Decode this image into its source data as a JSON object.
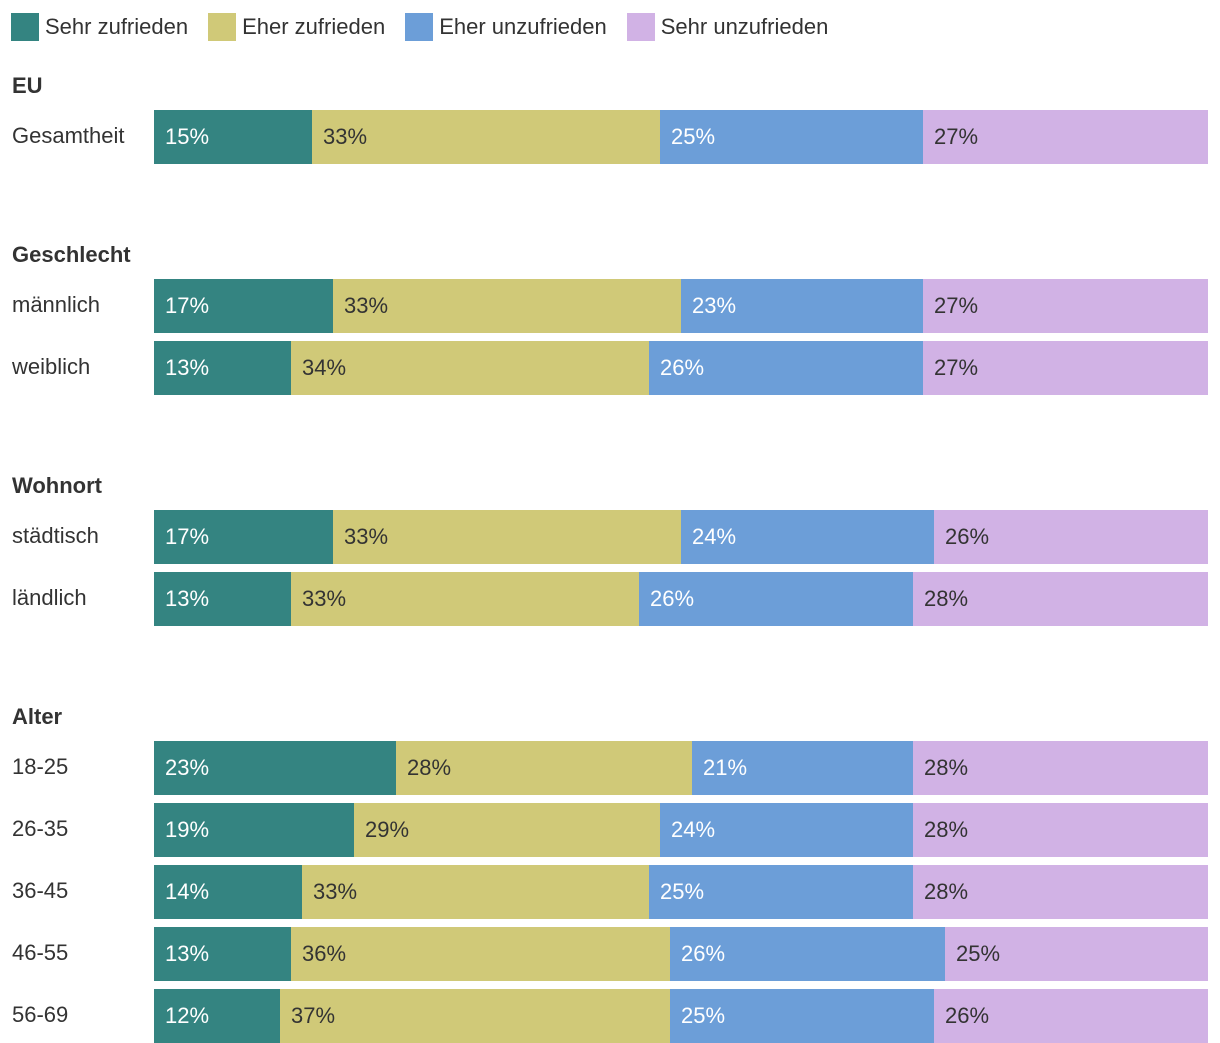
{
  "chart_data": {
    "type": "bar",
    "orientation": "horizontal",
    "stacked": true,
    "normalized_percent": true,
    "title": "",
    "xlabel": "",
    "ylabel": "",
    "legend_position": "top-left",
    "series": [
      {
        "name": "Sehr zufrieden",
        "color": "#348481",
        "label_color": "#ffffff"
      },
      {
        "name": "Eher zufrieden",
        "color": "#d0c978",
        "label_color": "#333333"
      },
      {
        "name": "Eher unzufrieden",
        "color": "#6c9ed8",
        "label_color": "#ffffff"
      },
      {
        "name": "Sehr unzufrieden",
        "color": "#d1b2e5",
        "label_color": "#333333"
      }
    ],
    "groups": [
      {
        "title": "EU",
        "rows": [
          {
            "label": "Gesamtheit",
            "values": [
              15,
              33,
              25,
              27
            ],
            "labels": [
              "15%",
              "33%",
              "25%",
              "27%"
            ]
          }
        ]
      },
      {
        "title": "Geschlecht",
        "rows": [
          {
            "label": "männlich",
            "values": [
              17,
              33,
              23,
              27
            ],
            "labels": [
              "17%",
              "33%",
              "23%",
              "27%"
            ]
          },
          {
            "label": "weiblich",
            "values": [
              13,
              34,
              26,
              27
            ],
            "labels": [
              "13%",
              "34%",
              "26%",
              "27%"
            ]
          }
        ]
      },
      {
        "title": "Wohnort",
        "rows": [
          {
            "label": "städtisch",
            "values": [
              17,
              33,
              24,
              26
            ],
            "labels": [
              "17%",
              "33%",
              "24%",
              "26%"
            ]
          },
          {
            "label": "ländlich",
            "values": [
              13,
              33,
              26,
              28
            ],
            "labels": [
              "13%",
              "33%",
              "26%",
              "28%"
            ]
          }
        ]
      },
      {
        "title": "Alter",
        "rows": [
          {
            "label": "18-25",
            "values": [
              23,
              28,
              21,
              28
            ],
            "labels": [
              "23%",
              "28%",
              "21%",
              "28%"
            ]
          },
          {
            "label": "26-35",
            "values": [
              19,
              29,
              24,
              28
            ],
            "labels": [
              "19%",
              "29%",
              "24%",
              "28%"
            ]
          },
          {
            "label": "36-45",
            "values": [
              14,
              33,
              25,
              28
            ],
            "labels": [
              "14%",
              "33%",
              "25%",
              "28%"
            ]
          },
          {
            "label": "46-55",
            "values": [
              13,
              36,
              26,
              25
            ],
            "labels": [
              "13%",
              "36%",
              "26%",
              "25%"
            ]
          },
          {
            "label": "56-69",
            "values": [
              12,
              37,
              25,
              26
            ],
            "labels": [
              "12%",
              "37%",
              "25%",
              "26%"
            ]
          }
        ]
      }
    ]
  }
}
